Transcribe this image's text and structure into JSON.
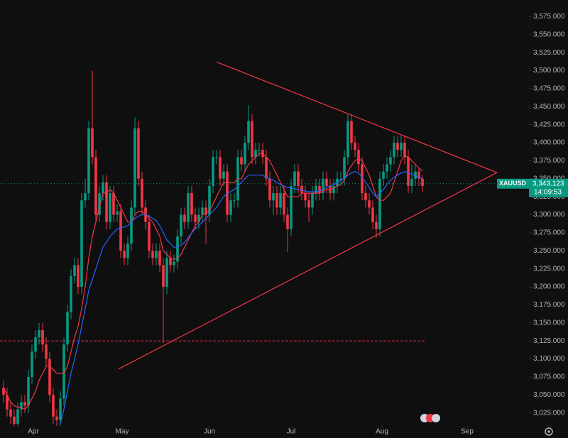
{
  "chart_data": {
    "type": "candlestick",
    "symbol": "XAUUSD",
    "countdown": "14:09:53",
    "current_price": {
      "value": 3343.123,
      "label": "3,343.123"
    },
    "up_color": "#089981",
    "down_color": "#f23645",
    "open": [
      3060,
      3050,
      3030,
      3020,
      3010,
      3030,
      3040,
      3035,
      3075,
      3110,
      3130,
      3140,
      3120,
      3100,
      3050,
      3020,
      3015,
      3045,
      3120,
      3165,
      3215,
      3230,
      3200,
      3320,
      3330,
      3420,
      3380,
      3300,
      3330,
      3345,
      3290,
      3330,
      3300,
      3305,
      3250,
      3240,
      3260,
      3310,
      3420,
      3350,
      3310,
      3290,
      3250,
      3240,
      3250,
      3230,
      3200,
      3240,
      3230,
      3235,
      3270,
      3300,
      3290,
      3330,
      3300,
      3290,
      3300,
      3310,
      3300,
      3340,
      3380,
      3380,
      3350,
      3360,
      3300,
      3320,
      3320,
      3380,
      3370,
      3400,
      3430,
      3380,
      3390,
      3390,
      3380,
      3350,
      3320,
      3330,
      3310,
      3330,
      3300,
      3280,
      3340,
      3360,
      3340,
      3330,
      3320,
      3310,
      3330,
      3340,
      3330,
      3350,
      3340,
      3330,
      3340,
      3350,
      3350,
      3380,
      3430,
      3400,
      3390,
      3370,
      3330,
      3320,
      3310,
      3290,
      3280,
      3350,
      3360,
      3370,
      3380,
      3400,
      3390,
      3400,
      3380,
      3340,
      3350,
      3360,
      3350
    ],
    "high": [
      3070,
      3060,
      3040,
      3030,
      3040,
      3050,
      3050,
      3085,
      3120,
      3140,
      3150,
      3150,
      3130,
      3110,
      3060,
      3030,
      3055,
      3130,
      3175,
      3225,
      3240,
      3240,
      3330,
      3350,
      3430,
      3500,
      3390,
      3340,
      3355,
      3355,
      3340,
      3340,
      3315,
      3315,
      3260,
      3270,
      3320,
      3435,
      3430,
      3360,
      3320,
      3300,
      3260,
      3260,
      3260,
      3240,
      3250,
      3250,
      3245,
      3280,
      3310,
      3310,
      3340,
      3340,
      3310,
      3310,
      3320,
      3320,
      3350,
      3390,
      3390,
      3390,
      3370,
      3370,
      3330,
      3330,
      3390,
      3390,
      3410,
      3452,
      3440,
      3400,
      3400,
      3400,
      3390,
      3360,
      3340,
      3340,
      3340,
      3340,
      3310,
      3350,
      3370,
      3370,
      3350,
      3340,
      3330,
      3340,
      3350,
      3350,
      3360,
      3360,
      3350,
      3350,
      3360,
      3360,
      3390,
      3440,
      3440,
      3410,
      3400,
      3380,
      3340,
      3330,
      3320,
      3300,
      3360,
      3370,
      3380,
      3390,
      3410,
      3410,
      3410,
      3410,
      3390,
      3370,
      3370,
      3365,
      3355
    ],
    "low": [
      3040,
      3020,
      3010,
      3000,
      3000,
      3020,
      3025,
      3025,
      3065,
      3100,
      3120,
      3110,
      3090,
      3040,
      3010,
      3005,
      3005,
      3035,
      3110,
      3155,
      3205,
      3190,
      3190,
      3310,
      3320,
      3370,
      3290,
      3290,
      3320,
      3280,
      3280,
      3290,
      3290,
      3240,
      3230,
      3230,
      3250,
      3300,
      3340,
      3300,
      3280,
      3240,
      3230,
      3230,
      3220,
      3122,
      3190,
      3220,
      3220,
      3225,
      3260,
      3280,
      3280,
      3290,
      3280,
      3280,
      3290,
      3260,
      3290,
      3330,
      3370,
      3340,
      3340,
      3290,
      3290,
      3310,
      3310,
      3360,
      3360,
      3390,
      3370,
      3370,
      3380,
      3370,
      3340,
      3310,
      3300,
      3300,
      3300,
      3290,
      3248,
      3270,
      3330,
      3330,
      3320,
      3310,
      3290,
      3300,
      3320,
      3320,
      3320,
      3330,
      3320,
      3320,
      3330,
      3340,
      3340,
      3370,
      3390,
      3380,
      3360,
      3320,
      3310,
      3300,
      3280,
      3268,
      3270,
      3340,
      3350,
      3360,
      3370,
      3380,
      3380,
      3370,
      3330,
      3330,
      3340,
      3340,
      3332
    ],
    "close": [
      3050,
      3030,
      3020,
      3010,
      3030,
      3040,
      3035,
      3075,
      3110,
      3130,
      3140,
      3120,
      3100,
      3050,
      3020,
      3015,
      3045,
      3120,
      3165,
      3215,
      3230,
      3200,
      3320,
      3330,
      3420,
      3380,
      3300,
      3330,
      3345,
      3290,
      3330,
      3300,
      3305,
      3250,
      3240,
      3260,
      3310,
      3420,
      3350,
      3310,
      3290,
      3250,
      3240,
      3250,
      3230,
      3200,
      3240,
      3230,
      3235,
      3270,
      3300,
      3290,
      3330,
      3300,
      3290,
      3300,
      3310,
      3300,
      3340,
      3380,
      3380,
      3350,
      3360,
      3300,
      3320,
      3320,
      3380,
      3370,
      3400,
      3430,
      3380,
      3390,
      3390,
      3380,
      3350,
      3320,
      3330,
      3310,
      3330,
      3300,
      3280,
      3340,
      3360,
      3340,
      3330,
      3320,
      3310,
      3330,
      3340,
      3330,
      3350,
      3340,
      3330,
      3340,
      3350,
      3350,
      3380,
      3430,
      3400,
      3390,
      3370,
      3330,
      3320,
      3310,
      3290,
      3280,
      3350,
      3360,
      3370,
      3380,
      3400,
      3390,
      3400,
      3380,
      3340,
      3350,
      3360,
      3350,
      3340
    ],
    "series": [
      {
        "color": "#f23645",
        "values": [
          3060,
          3050,
          3040,
          3035,
          3033,
          3032,
          3030,
          3035,
          3045,
          3055,
          3070,
          3080,
          3090,
          3090,
          3085,
          3080,
          3080,
          3080,
          3090,
          3110,
          3130,
          3145,
          3170,
          3200,
          3240,
          3270,
          3290,
          3310,
          3330,
          3330,
          3335,
          3330,
          3320,
          3310,
          3300,
          3290,
          3290,
          3300,
          3305,
          3305,
          3300,
          3295,
          3290,
          3280,
          3270,
          3250,
          3245,
          3240,
          3238,
          3240,
          3245,
          3255,
          3265,
          3275,
          3285,
          3290,
          3300,
          3302,
          3305,
          3315,
          3325,
          3335,
          3345,
          3345,
          3345,
          3345,
          3350,
          3350,
          3360,
          3370,
          3375,
          3380,
          3385,
          3385,
          3380,
          3375,
          3365,
          3355,
          3345,
          3335,
          3325,
          3325,
          3325,
          3325,
          3330,
          3330,
          3330,
          3330,
          3330,
          3330,
          3333,
          3335,
          3335,
          3337,
          3340,
          3342,
          3348,
          3360,
          3368,
          3375,
          3378,
          3375,
          3365,
          3355,
          3340,
          3325,
          3320,
          3320,
          3325,
          3330,
          3345,
          3360,
          3375,
          3382,
          3380,
          3375,
          3370,
          3365,
          3360
        ]
      },
      {
        "color": "#2962ff",
        "values": [
          null,
          null,
          null,
          null,
          null,
          null,
          null,
          null,
          null,
          null,
          null,
          null,
          null,
          null,
          null,
          null,
          3010,
          3030,
          3055,
          3080,
          3100,
          3120,
          3145,
          3170,
          3195,
          3210,
          3225,
          3240,
          3255,
          3262,
          3270,
          3275,
          3280,
          3282,
          3283,
          3285,
          3290,
          3295,
          3298,
          3300,
          3300,
          3298,
          3295,
          3292,
          3285,
          3275,
          3265,
          3260,
          3255,
          3255,
          3258,
          3262,
          3268,
          3275,
          3280,
          3285,
          3290,
          3295,
          3300,
          3305,
          3310,
          3318,
          3325,
          3330,
          3332,
          3335,
          3340,
          3345,
          3350,
          3355,
          3355,
          3355,
          3355,
          3355,
          3352,
          3350,
          3348,
          3345,
          3342,
          3340,
          3338,
          3337,
          3336,
          3335,
          3334,
          3333,
          3332,
          3332,
          3332,
          3333,
          3335,
          3338,
          3340,
          3342,
          3345,
          3348,
          3350,
          3355,
          3358,
          3360,
          3358,
          3352,
          3345,
          3338,
          3330,
          3325,
          3330,
          3335,
          3342,
          3348,
          3352,
          3355,
          3358,
          3360,
          3358,
          3356,
          3354,
          3352,
          3350
        ]
      }
    ],
    "trendlines": [
      {
        "color": "#f23645",
        "x": [
          60,
          139
        ],
        "y": [
          3512,
          3358.6
        ]
      },
      {
        "color": "#f23645",
        "x": [
          32.4,
          139
        ],
        "y": [
          3086,
          3358.6
        ]
      }
    ],
    "horizontal_line": {
      "value": 3125,
      "color": "#f23645"
    },
    "xlim": [
      -1,
      148
    ],
    "ylim": [
      3007,
      3598
    ],
    "xticks": [
      {
        "value": 8.4,
        "label": "Apr"
      },
      {
        "value": 33.4,
        "label": "May"
      },
      {
        "value": 58,
        "label": "Jun"
      },
      {
        "value": 81,
        "label": "Jul"
      },
      {
        "value": 106.6,
        "label": "Aug"
      },
      {
        "value": 130.6,
        "label": "Sep"
      }
    ],
    "yticks": [
      {
        "value": 3025,
        "label": "3,025.000"
      },
      {
        "value": 3050,
        "label": "3,050.000"
      },
      {
        "value": 3075,
        "label": "3,075.000"
      },
      {
        "value": 3100,
        "label": "3,100.000"
      },
      {
        "value": 3125,
        "label": "3,125.000"
      },
      {
        "value": 3150,
        "label": "3,150.000"
      },
      {
        "value": 3175,
        "label": "3,175.000"
      },
      {
        "value": 3200,
        "label": "3,200.000"
      },
      {
        "value": 3225,
        "label": "3,225.000"
      },
      {
        "value": 3250,
        "label": "3,250.000"
      },
      {
        "value": 3275,
        "label": "3,275.000"
      },
      {
        "value": 3300,
        "label": "3,300.000"
      },
      {
        "value": 3325,
        "label": "3,325.000"
      },
      {
        "value": 3350,
        "label": "3,350.000"
      },
      {
        "value": 3375,
        "label": "3,375.000"
      },
      {
        "value": 3400,
        "label": "3,400.000"
      },
      {
        "value": 3425,
        "label": "3,425.000"
      },
      {
        "value": 3450,
        "label": "3,450.000"
      },
      {
        "value": 3475,
        "label": "3,475.000"
      },
      {
        "value": 3500,
        "label": "3,500.000"
      },
      {
        "value": 3525,
        "label": "3,525.000"
      },
      {
        "value": 3550,
        "label": "3,550.000"
      },
      {
        "value": 3575,
        "label": "3,575.000"
      }
    ]
  }
}
